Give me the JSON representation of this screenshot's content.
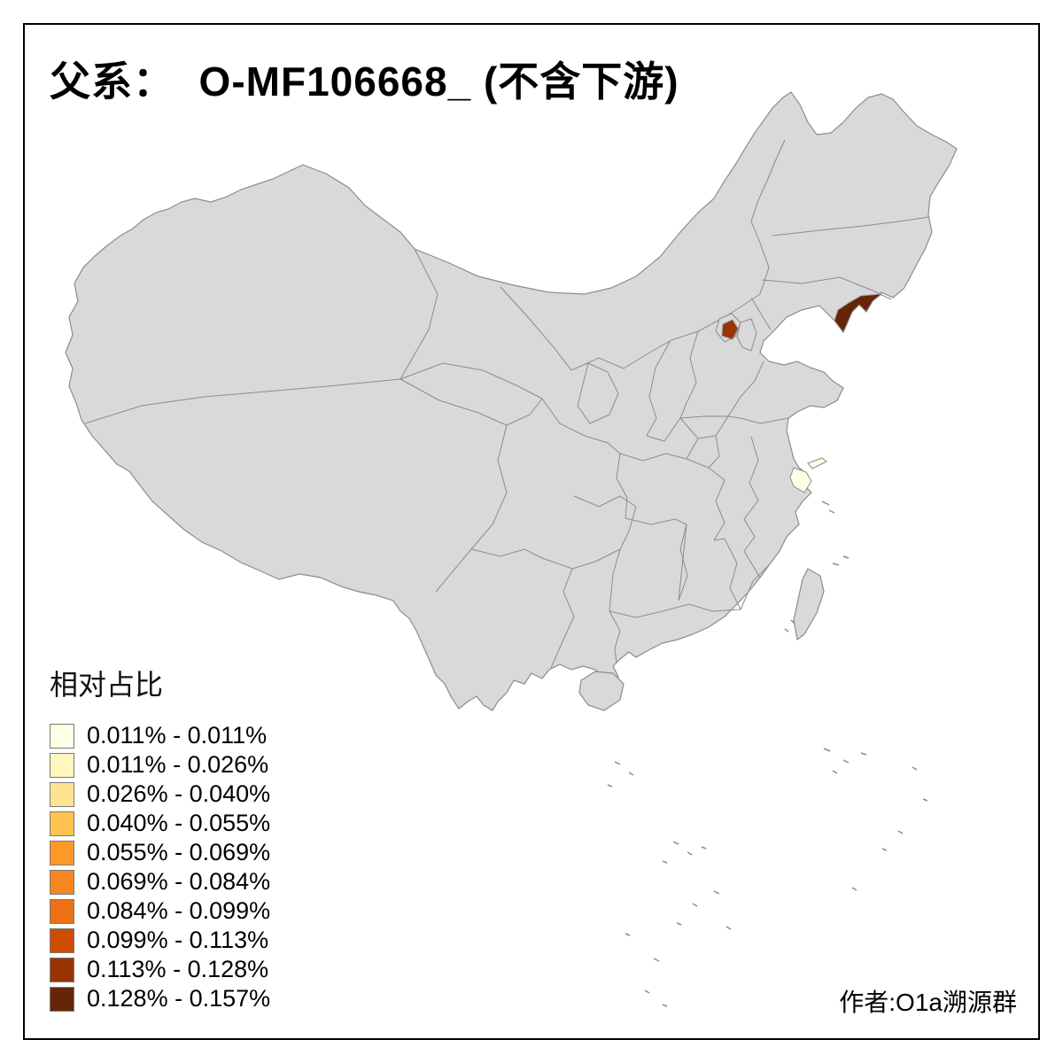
{
  "title": "父系：  O-MF106668_ (不含下游)",
  "legend": {
    "title": "相对占比",
    "items": [
      {
        "label": "0.011% - 0.011%",
        "color": "#FFFFE5"
      },
      {
        "label": "0.011% - 0.026%",
        "color": "#FFF7BC"
      },
      {
        "label": "0.026% - 0.040%",
        "color": "#FEE391"
      },
      {
        "label": "0.040% - 0.055%",
        "color": "#FEC44F"
      },
      {
        "label": "0.055% - 0.069%",
        "color": "#FE9929"
      },
      {
        "label": "0.069% - 0.084%",
        "color": "#F6861F"
      },
      {
        "label": "0.084% - 0.099%",
        "color": "#EC7014"
      },
      {
        "label": "0.099% - 0.113%",
        "color": "#CC4C02"
      },
      {
        "label": "0.113% - 0.128%",
        "color": "#993404"
      },
      {
        "label": "0.128% - 0.157%",
        "color": "#662506"
      }
    ]
  },
  "credit": "作者:O1a溯源群",
  "map": {
    "land_fill": "#D9D9D9",
    "boundary_color": "#8C8C8C",
    "frame_color": "#000000",
    "highlights": [
      {
        "region": "liaodong-peninsula",
        "class_index": 9
      },
      {
        "region": "beijing-area",
        "class_index": 8
      },
      {
        "region": "shanghai-area",
        "class_index": 0
      },
      {
        "region": "chongming-island",
        "class_index": 0
      }
    ]
  }
}
